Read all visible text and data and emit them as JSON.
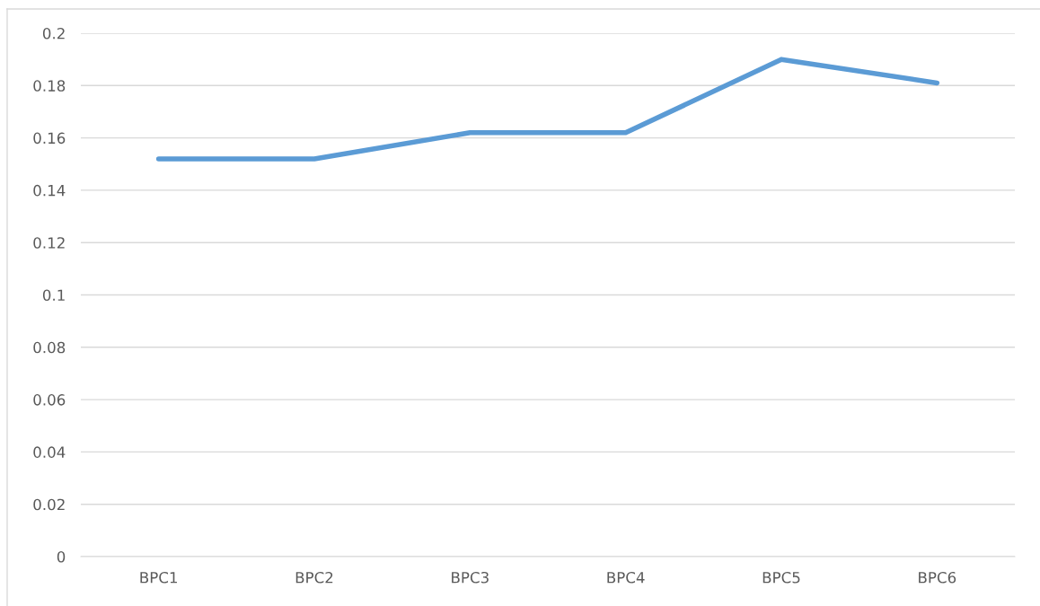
{
  "chart_data": {
    "type": "line",
    "categories": [
      "BPC1",
      "BPC2",
      "BPC3",
      "BPC4",
      "BPC5",
      "BPC6"
    ],
    "series": [
      {
        "color": "#5b9bd5",
        "values": [
          0.152,
          0.152,
          0.162,
          0.162,
          0.19,
          0.181
        ]
      }
    ],
    "ylim": [
      0,
      0.2
    ],
    "yticks": [
      {
        "value": 0,
        "label": "0"
      },
      {
        "value": 0.02,
        "label": "0.02"
      },
      {
        "value": 0.04,
        "label": "0.04"
      },
      {
        "value": 0.06,
        "label": "0.06"
      },
      {
        "value": 0.08,
        "label": "0.08"
      },
      {
        "value": 0.1,
        "label": "0.1"
      },
      {
        "value": 0.12,
        "label": "0.12"
      },
      {
        "value": 0.14,
        "label": "0.14"
      },
      {
        "value": 0.16,
        "label": "0.16"
      },
      {
        "value": 0.18,
        "label": "0.18"
      },
      {
        "value": 0.2,
        "label": "0.2"
      }
    ],
    "grid": "y",
    "legend": false,
    "marker": "none",
    "line_style": "solid"
  }
}
